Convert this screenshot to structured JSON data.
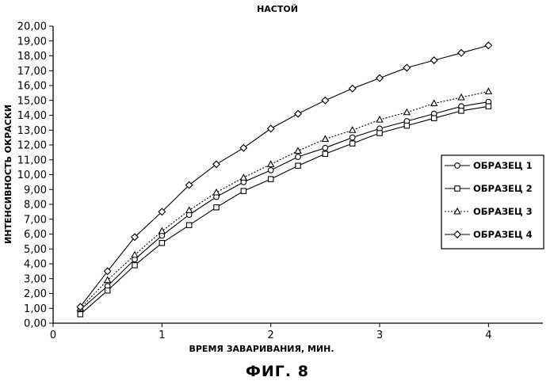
{
  "chart_data": {
    "type": "line",
    "title": "НАСТОЙ",
    "xlabel": "ВРЕМЯ ЗАВАРИВАНИЯ, МИН.",
    "ylabel": "ИНТЕНСИВНОСТЬ ОКРАСКИ",
    "caption": "ФИГ. 8",
    "xlim": [
      0,
      4.5
    ],
    "ylim": [
      0,
      20
    ],
    "x_ticks": [
      0,
      1,
      2,
      3,
      4
    ],
    "x_tick_labels": [
      "0",
      "1",
      "2",
      "3",
      "4"
    ],
    "y_ticks": [
      0,
      1,
      2,
      3,
      4,
      5,
      6,
      7,
      8,
      9,
      10,
      11,
      12,
      13,
      14,
      15,
      16,
      17,
      18,
      19,
      20
    ],
    "y_tick_labels": [
      "0,00",
      "1,00",
      "2,00",
      "3,00",
      "4,00",
      "5,00",
      "6,00",
      "7,00",
      "8,00",
      "9,00",
      "10,00",
      "11,00",
      "12,00",
      "13,00",
      "14,00",
      "15,00",
      "16,00",
      "17,00",
      "18,00",
      "19,00",
      "20,00"
    ],
    "grid": false,
    "legend_position": "right",
    "x": [
      0.25,
      0.5,
      0.75,
      1.0,
      1.25,
      1.5,
      1.75,
      2.0,
      2.25,
      2.5,
      2.75,
      3.0,
      3.25,
      3.5,
      3.75,
      4.0
    ],
    "series": [
      {
        "name": "ОБРАЗЕЦ 1",
        "marker": "circle",
        "dash": "solid",
        "values": [
          0.9,
          2.5,
          4.3,
          5.9,
          7.3,
          8.5,
          9.5,
          10.3,
          11.2,
          11.8,
          12.5,
          13.1,
          13.6,
          14.1,
          14.6,
          14.9
        ]
      },
      {
        "name": "ОБРАЗЕЦ 2",
        "marker": "square",
        "dash": "solid",
        "values": [
          0.6,
          2.2,
          3.9,
          5.4,
          6.6,
          7.8,
          8.9,
          9.7,
          10.6,
          11.4,
          12.1,
          12.8,
          13.3,
          13.8,
          14.3,
          14.6
        ]
      },
      {
        "name": "ОБРАЗЕЦ 3",
        "marker": "triangle",
        "dash": "dotted",
        "values": [
          1.0,
          2.9,
          4.6,
          6.2,
          7.6,
          8.8,
          9.8,
          10.7,
          11.6,
          12.4,
          13.0,
          13.7,
          14.2,
          14.8,
          15.2,
          15.6
        ]
      },
      {
        "name": "ОБРАЗЕЦ 4",
        "marker": "diamond",
        "dash": "solid",
        "values": [
          1.1,
          3.5,
          5.8,
          7.5,
          9.3,
          10.7,
          11.8,
          13.1,
          14.1,
          15.0,
          15.8,
          16.5,
          17.2,
          17.7,
          18.2,
          18.7
        ]
      }
    ]
  }
}
